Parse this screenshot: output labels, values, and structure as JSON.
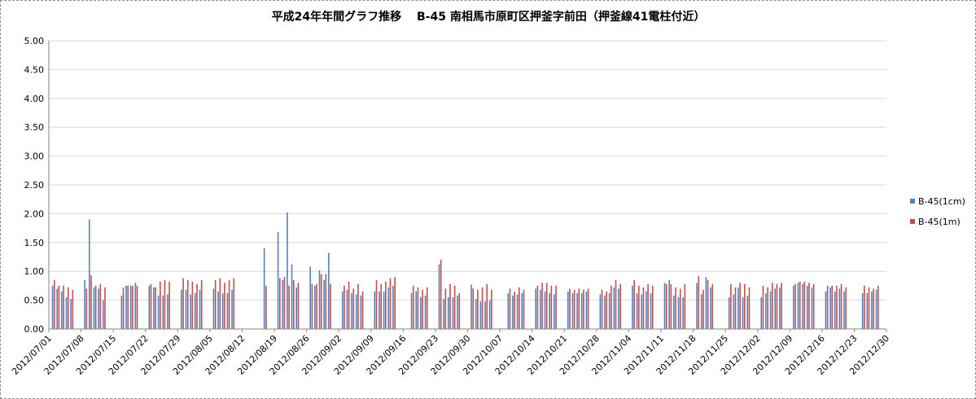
{
  "chart_data": {
    "type": "bar",
    "title": "平成24年年間グラフ推移　 B-45 南相馬市原町区押釜字前田（押釜線41電柱付近）",
    "xlabel": "",
    "ylabel": "",
    "ylim": [
      0,
      5
    ],
    "y_ticks": [
      "0.00",
      "0.50",
      "1.00",
      "1.50",
      "2.00",
      "2.50",
      "3.00",
      "3.50",
      "4.00",
      "4.50",
      "5.00"
    ],
    "x_range": [
      "2012/07/01",
      "2012/12/30"
    ],
    "x_tick_labels": [
      "2012/07/01",
      "2012/07/08",
      "2012/07/15",
      "2012/07/22",
      "2012/07/29",
      "2012/08/05",
      "2012/08/12",
      "2012/08/19",
      "2012/08/26",
      "2012/09/02",
      "2012/09/09",
      "2012/09/16",
      "2012/09/23",
      "2012/09/30",
      "2012/10/07",
      "2012/10/14",
      "2012/10/21",
      "2012/10/28",
      "2012/11/04",
      "2012/11/11",
      "2012/11/18",
      "2012/11/25",
      "2012/12/02",
      "2012/12/09",
      "2012/12/16",
      "2012/12/23",
      "2012/12/30"
    ],
    "grid": "horizontal",
    "legend_position": "right",
    "colors": {
      "series1": "#4f81bd",
      "series2": "#c0504d",
      "gridline": "#d9d9d9",
      "axis": "#868686"
    },
    "series": [
      {
        "name": "B-45(1cm)",
        "points": [
          [
            "2012/07/02",
            0.75
          ],
          [
            "2012/07/03",
            0.7
          ],
          [
            "2012/07/04",
            0.65
          ],
          [
            "2012/07/05",
            0.55
          ],
          [
            "2012/07/06",
            0.52
          ],
          [
            "2012/07/09",
            0.85
          ],
          [
            "2012/07/10",
            1.9
          ],
          [
            "2012/07/11",
            0.72
          ],
          [
            "2012/07/12",
            0.7
          ],
          [
            "2012/07/13",
            0.5
          ],
          [
            "2012/07/17",
            0.58
          ],
          [
            "2012/07/18",
            0.75
          ],
          [
            "2012/07/19",
            0.75
          ],
          [
            "2012/07/20",
            0.8
          ],
          [
            "2012/07/23",
            0.75
          ],
          [
            "2012/07/24",
            0.72
          ],
          [
            "2012/07/25",
            0.58
          ],
          [
            "2012/07/26",
            0.58
          ],
          [
            "2012/07/27",
            0.6
          ],
          [
            "2012/07/30",
            0.68
          ],
          [
            "2012/07/31",
            0.68
          ],
          [
            "2012/08/01",
            0.6
          ],
          [
            "2012/08/02",
            0.62
          ],
          [
            "2012/08/03",
            0.68
          ],
          [
            "2012/08/06",
            0.7
          ],
          [
            "2012/08/07",
            0.65
          ],
          [
            "2012/08/08",
            0.62
          ],
          [
            "2012/08/09",
            0.62
          ],
          [
            "2012/08/10",
            0.68
          ],
          [
            "2012/08/17",
            1.4
          ],
          [
            "2012/08/20",
            1.68
          ],
          [
            "2012/08/21",
            0.85
          ],
          [
            "2012/08/22",
            2.02
          ],
          [
            "2012/08/23",
            1.12
          ],
          [
            "2012/08/24",
            0.72
          ],
          [
            "2012/08/27",
            1.08
          ],
          [
            "2012/08/28",
            0.75
          ],
          [
            "2012/08/29",
            1.02
          ],
          [
            "2012/08/30",
            0.85
          ],
          [
            "2012/08/31",
            1.32
          ],
          [
            "2012/09/03",
            0.65
          ],
          [
            "2012/09/04",
            0.68
          ],
          [
            "2012/09/05",
            0.62
          ],
          [
            "2012/09/06",
            0.6
          ],
          [
            "2012/09/07",
            0.58
          ],
          [
            "2012/09/10",
            0.65
          ],
          [
            "2012/09/11",
            0.65
          ],
          [
            "2012/09/12",
            0.65
          ],
          [
            "2012/09/13",
            0.72
          ],
          [
            "2012/09/14",
            0.75
          ],
          [
            "2012/09/18",
            0.62
          ],
          [
            "2012/09/19",
            0.65
          ],
          [
            "2012/09/20",
            0.55
          ],
          [
            "2012/09/21",
            0.58
          ],
          [
            "2012/09/24",
            1.12
          ],
          [
            "2012/09/25",
            0.52
          ],
          [
            "2012/09/26",
            0.55
          ],
          [
            "2012/09/27",
            0.55
          ],
          [
            "2012/09/28",
            0.58
          ],
          [
            "2012/10/01",
            0.77
          ],
          [
            "2012/10/02",
            0.52
          ],
          [
            "2012/10/03",
            0.48
          ],
          [
            "2012/10/04",
            0.48
          ],
          [
            "2012/10/05",
            0.5
          ],
          [
            "2012/10/09",
            0.62
          ],
          [
            "2012/10/10",
            0.58
          ],
          [
            "2012/10/11",
            0.6
          ],
          [
            "2012/10/12",
            0.62
          ],
          [
            "2012/10/15",
            0.7
          ],
          [
            "2012/10/16",
            0.68
          ],
          [
            "2012/10/17",
            0.65
          ],
          [
            "2012/10/18",
            0.62
          ],
          [
            "2012/10/19",
            0.6
          ],
          [
            "2012/10/22",
            0.65
          ],
          [
            "2012/10/23",
            0.62
          ],
          [
            "2012/10/24",
            0.62
          ],
          [
            "2012/10/25",
            0.62
          ],
          [
            "2012/10/26",
            0.65
          ],
          [
            "2012/10/29",
            0.6
          ],
          [
            "2012/10/30",
            0.58
          ],
          [
            "2012/10/31",
            0.62
          ],
          [
            "2012/11/01",
            0.72
          ],
          [
            "2012/11/02",
            0.7
          ],
          [
            "2012/11/05",
            0.75
          ],
          [
            "2012/11/06",
            0.62
          ],
          [
            "2012/11/07",
            0.6
          ],
          [
            "2012/11/08",
            0.65
          ],
          [
            "2012/11/09",
            0.62
          ],
          [
            "2012/11/12",
            0.8
          ],
          [
            "2012/11/13",
            0.85
          ],
          [
            "2012/11/14",
            0.58
          ],
          [
            "2012/11/15",
            0.55
          ],
          [
            "2012/11/16",
            0.55
          ],
          [
            "2012/11/19",
            0.8
          ],
          [
            "2012/11/20",
            0.6
          ],
          [
            "2012/11/21",
            0.9
          ],
          [
            "2012/11/22",
            0.72
          ],
          [
            "2012/11/26",
            0.55
          ],
          [
            "2012/11/27",
            0.6
          ],
          [
            "2012/11/28",
            0.72
          ],
          [
            "2012/11/29",
            0.55
          ],
          [
            "2012/11/30",
            0.58
          ],
          [
            "2012/12/03",
            0.55
          ],
          [
            "2012/12/04",
            0.62
          ],
          [
            "2012/12/05",
            0.65
          ],
          [
            "2012/12/06",
            0.7
          ],
          [
            "2012/12/07",
            0.72
          ],
          [
            "2012/12/10",
            0.75
          ],
          [
            "2012/12/11",
            0.8
          ],
          [
            "2012/12/12",
            0.78
          ],
          [
            "2012/12/13",
            0.75
          ],
          [
            "2012/12/14",
            0.72
          ],
          [
            "2012/12/17",
            0.65
          ],
          [
            "2012/12/18",
            0.72
          ],
          [
            "2012/12/19",
            0.65
          ],
          [
            "2012/12/20",
            0.7
          ],
          [
            "2012/12/21",
            0.65
          ],
          [
            "2012/12/25",
            0.62
          ],
          [
            "2012/12/26",
            0.62
          ],
          [
            "2012/12/27",
            0.65
          ],
          [
            "2012/12/28",
            0.68
          ]
        ]
      },
      {
        "name": "B-45(1m)",
        "points": [
          [
            "2012/07/02",
            0.85
          ],
          [
            "2012/07/03",
            0.75
          ],
          [
            "2012/07/04",
            0.75
          ],
          [
            "2012/07/05",
            0.72
          ],
          [
            "2012/07/06",
            0.68
          ],
          [
            "2012/07/09",
            0.7
          ],
          [
            "2012/07/10",
            0.93
          ],
          [
            "2012/07/11",
            0.75
          ],
          [
            "2012/07/12",
            0.78
          ],
          [
            "2012/07/13",
            0.72
          ],
          [
            "2012/07/17",
            0.72
          ],
          [
            "2012/07/18",
            0.75
          ],
          [
            "2012/07/19",
            0.75
          ],
          [
            "2012/07/20",
            0.75
          ],
          [
            "2012/07/23",
            0.78
          ],
          [
            "2012/07/24",
            0.72
          ],
          [
            "2012/07/25",
            0.82
          ],
          [
            "2012/07/26",
            0.85
          ],
          [
            "2012/07/27",
            0.82
          ],
          [
            "2012/07/30",
            0.88
          ],
          [
            "2012/07/31",
            0.85
          ],
          [
            "2012/08/01",
            0.82
          ],
          [
            "2012/08/02",
            0.78
          ],
          [
            "2012/08/03",
            0.85
          ],
          [
            "2012/08/06",
            0.85
          ],
          [
            "2012/08/07",
            0.88
          ],
          [
            "2012/08/08",
            0.8
          ],
          [
            "2012/08/09",
            0.85
          ],
          [
            "2012/08/10",
            0.88
          ],
          [
            "2012/08/17",
            0.75
          ],
          [
            "2012/08/20",
            0.88
          ],
          [
            "2012/08/21",
            0.9
          ],
          [
            "2012/08/22",
            0.75
          ],
          [
            "2012/08/23",
            0.85
          ],
          [
            "2012/08/24",
            0.8
          ],
          [
            "2012/08/27",
            0.78
          ],
          [
            "2012/08/28",
            0.78
          ],
          [
            "2012/08/29",
            0.95
          ],
          [
            "2012/08/30",
            0.95
          ],
          [
            "2012/08/31",
            0.78
          ],
          [
            "2012/09/03",
            0.75
          ],
          [
            "2012/09/04",
            0.82
          ],
          [
            "2012/09/05",
            0.7
          ],
          [
            "2012/09/06",
            0.78
          ],
          [
            "2012/09/07",
            0.65
          ],
          [
            "2012/09/10",
            0.85
          ],
          [
            "2012/09/11",
            0.78
          ],
          [
            "2012/09/12",
            0.82
          ],
          [
            "2012/09/13",
            0.88
          ],
          [
            "2012/09/14",
            0.9
          ],
          [
            "2012/09/18",
            0.75
          ],
          [
            "2012/09/19",
            0.72
          ],
          [
            "2012/09/20",
            0.68
          ],
          [
            "2012/09/21",
            0.72
          ],
          [
            "2012/09/24",
            1.2
          ],
          [
            "2012/09/25",
            0.7
          ],
          [
            "2012/09/26",
            0.78
          ],
          [
            "2012/09/27",
            0.75
          ],
          [
            "2012/09/28",
            0.62
          ],
          [
            "2012/10/01",
            0.7
          ],
          [
            "2012/10/02",
            0.68
          ],
          [
            "2012/10/03",
            0.72
          ],
          [
            "2012/10/04",
            0.78
          ],
          [
            "2012/10/05",
            0.68
          ],
          [
            "2012/10/09",
            0.7
          ],
          [
            "2012/10/10",
            0.65
          ],
          [
            "2012/10/11",
            0.72
          ],
          [
            "2012/10/12",
            0.68
          ],
          [
            "2012/10/15",
            0.75
          ],
          [
            "2012/10/16",
            0.8
          ],
          [
            "2012/10/17",
            0.8
          ],
          [
            "2012/10/18",
            0.75
          ],
          [
            "2012/10/19",
            0.75
          ],
          [
            "2012/10/22",
            0.7
          ],
          [
            "2012/10/23",
            0.68
          ],
          [
            "2012/10/24",
            0.7
          ],
          [
            "2012/10/25",
            0.68
          ],
          [
            "2012/10/26",
            0.7
          ],
          [
            "2012/10/29",
            0.68
          ],
          [
            "2012/10/30",
            0.65
          ],
          [
            "2012/10/31",
            0.75
          ],
          [
            "2012/11/01",
            0.85
          ],
          [
            "2012/11/02",
            0.78
          ],
          [
            "2012/11/05",
            0.85
          ],
          [
            "2012/11/06",
            0.75
          ],
          [
            "2012/11/07",
            0.72
          ],
          [
            "2012/11/08",
            0.78
          ],
          [
            "2012/11/09",
            0.75
          ],
          [
            "2012/11/12",
            0.78
          ],
          [
            "2012/11/13",
            0.78
          ],
          [
            "2012/11/14",
            0.72
          ],
          [
            "2012/11/15",
            0.7
          ],
          [
            "2012/11/16",
            0.78
          ],
          [
            "2012/11/19",
            0.92
          ],
          [
            "2012/11/20",
            0.68
          ],
          [
            "2012/11/21",
            0.85
          ],
          [
            "2012/11/22",
            0.78
          ],
          [
            "2012/11/26",
            0.78
          ],
          [
            "2012/11/27",
            0.72
          ],
          [
            "2012/11/28",
            0.8
          ],
          [
            "2012/11/29",
            0.78
          ],
          [
            "2012/11/30",
            0.72
          ],
          [
            "2012/12/03",
            0.75
          ],
          [
            "2012/12/04",
            0.72
          ],
          [
            "2012/12/05",
            0.8
          ],
          [
            "2012/12/06",
            0.78
          ],
          [
            "2012/12/07",
            0.8
          ],
          [
            "2012/12/10",
            0.78
          ],
          [
            "2012/12/11",
            0.82
          ],
          [
            "2012/12/12",
            0.82
          ],
          [
            "2012/12/13",
            0.8
          ],
          [
            "2012/12/14",
            0.78
          ],
          [
            "2012/12/17",
            0.75
          ],
          [
            "2012/12/18",
            0.75
          ],
          [
            "2012/12/19",
            0.75
          ],
          [
            "2012/12/20",
            0.78
          ],
          [
            "2012/12/21",
            0.72
          ],
          [
            "2012/12/25",
            0.75
          ],
          [
            "2012/12/26",
            0.72
          ],
          [
            "2012/12/27",
            0.7
          ],
          [
            "2012/12/28",
            0.75
          ]
        ]
      }
    ]
  }
}
